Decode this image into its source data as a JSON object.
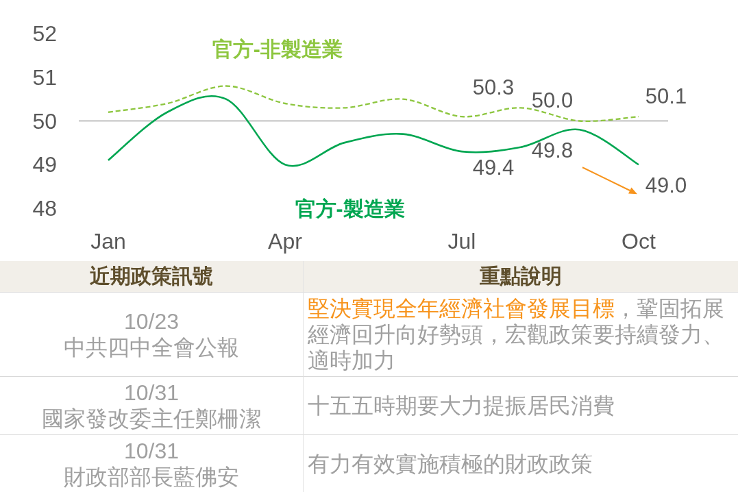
{
  "chart_data": [
    {
      "type": "line",
      "categories": [
        "Jan",
        null,
        null,
        "Apr",
        null,
        null,
        "Jul",
        null,
        null,
        "Oct"
      ],
      "ylim": [
        48,
        52
      ],
      "yticks": [
        48,
        49,
        50,
        51,
        52
      ],
      "ref_lines": [
        {
          "axis": "y",
          "value": 50,
          "color": "#a6a6a6"
        }
      ],
      "series": [
        {
          "name": "官方-非製造業",
          "color": "#8dc63f",
          "line_style": "dashed",
          "values": [
            50.2,
            50.4,
            50.8,
            50.4,
            50.3,
            50.5,
            50.1,
            50.3,
            50.0,
            50.1
          ],
          "value_labels": [
            null,
            null,
            null,
            null,
            null,
            null,
            null,
            "50.3",
            "50.0",
            "50.1"
          ]
        },
        {
          "name": "官方-製造業",
          "color": "#00a651",
          "line_style": "solid",
          "values": [
            49.1,
            50.2,
            50.5,
            49.0,
            49.5,
            49.7,
            49.3,
            49.4,
            49.8,
            49.0
          ],
          "value_labels": [
            null,
            null,
            null,
            null,
            null,
            null,
            null,
            "49.4",
            "49.8",
            "49.0"
          ]
        }
      ]
    },
    {
      "type": "other",
      "categories": [
        "近期政策訊號",
        "重點說明"
      ],
      "annotations": [
        "10/23",
        "中共四中全會公報",
        "**堅決實現全年經濟社會發展目標**，鞏固拓展經濟回升向好勢頭，宏觀政策要持續發力、適時加力",
        "10/31",
        "國家發改委主任鄭柵潔",
        "十五五時期要大力提振居民消費",
        "10/31",
        "財政部部長藍佛安",
        "有力有效實施積極的財政政策"
      ]
    }
  ]
}
